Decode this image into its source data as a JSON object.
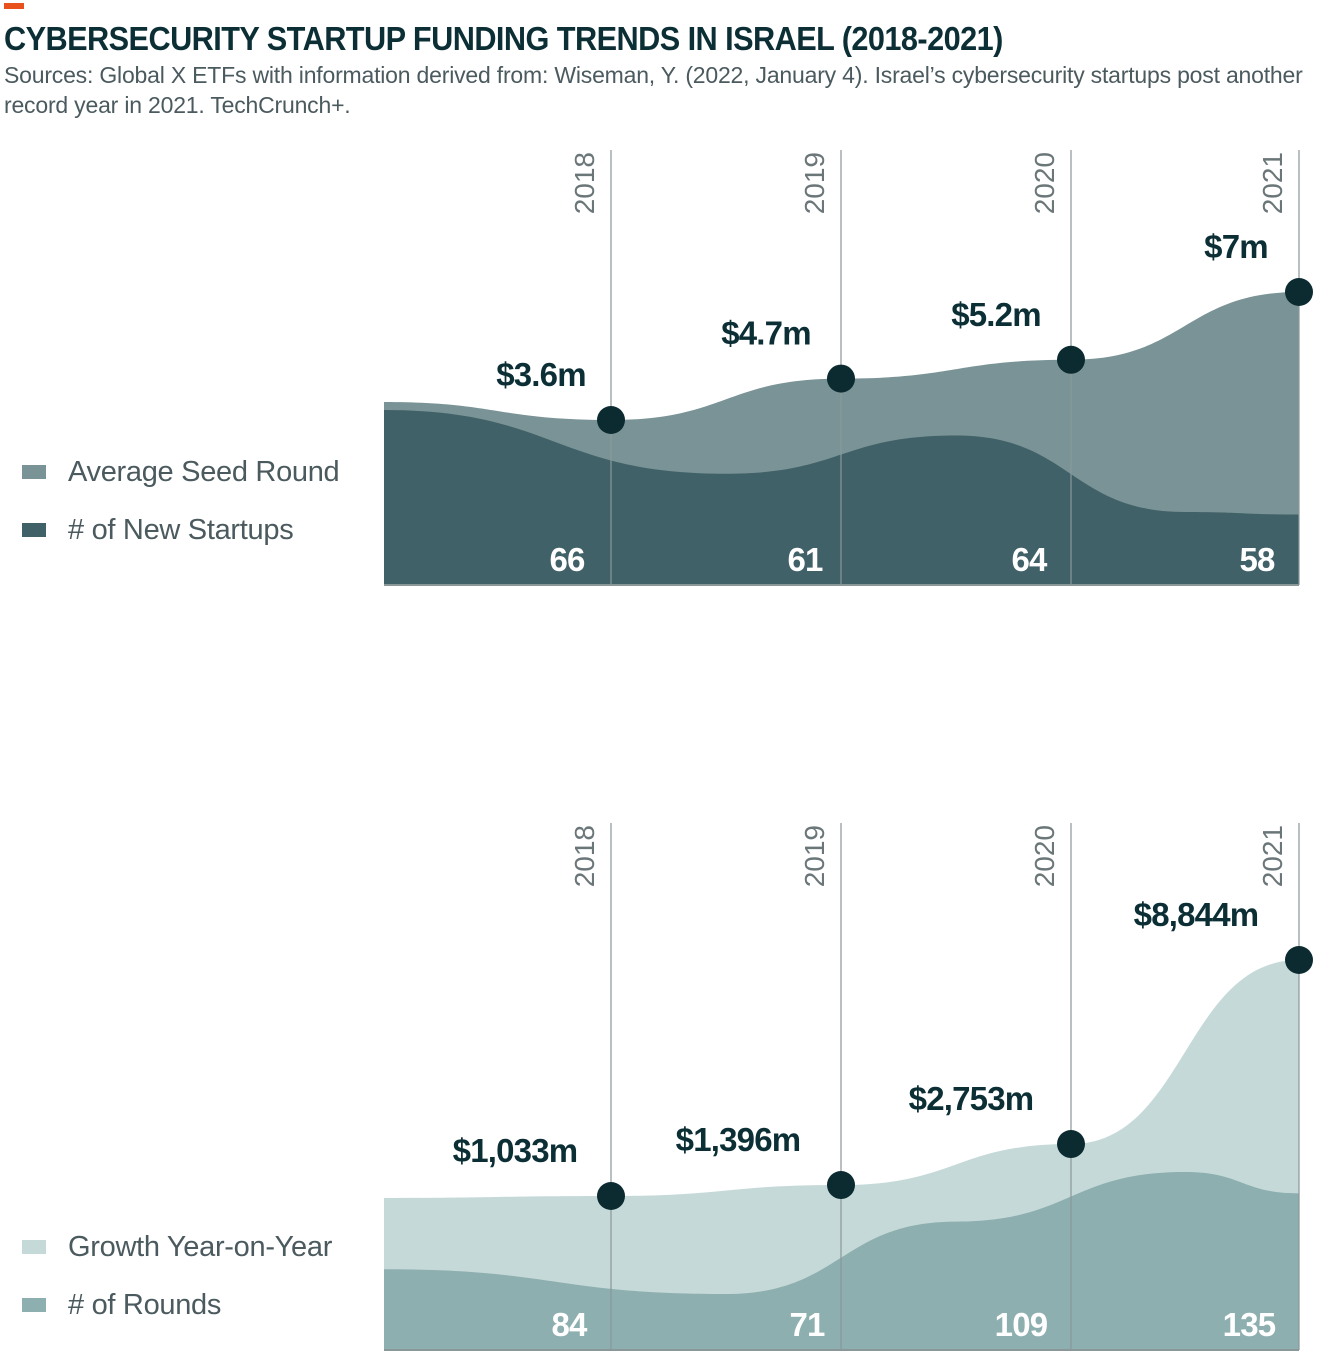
{
  "header": {
    "title": "CYBERSECURITY STARTUP FUNDING TRENDS IN ISRAEL (2018-2021)",
    "source": "Sources: Global X ETFs with information derived from: Wiseman, Y. (2022, January 4). Israel’s cybersecurity startups post another record year in 2021. TechCrunch+.",
    "accent_color": "#e8501c"
  },
  "chart_data": [
    {
      "type": "area",
      "categories": [
        "2018",
        "2019",
        "2020",
        "2021"
      ],
      "series": [
        {
          "name": "Average Seed Round",
          "values": [
            3.6,
            4.7,
            5.2,
            7
          ],
          "labels": [
            "$3.6m",
            "$4.7m",
            "$5.2m",
            "$7m"
          ],
          "color": "#7a9396"
        },
        {
          "name": "# of New Startups",
          "values": [
            66,
            61,
            64,
            58
          ],
          "labels": [
            "66",
            "61",
            "64",
            "58"
          ],
          "color": "#416168"
        }
      ],
      "legend": "left"
    },
    {
      "type": "area",
      "categories": [
        "2018",
        "2019",
        "2020",
        "2021"
      ],
      "series": [
        {
          "name": "Growth Year-on-Year",
          "values": [
            1033,
            1396,
            2753,
            8844
          ],
          "labels": [
            "$1,033m",
            "$1,396m",
            "$2,753m",
            "$8,844m"
          ],
          "color": "#c6d9d9"
        },
        {
          "name": "# of Rounds",
          "values": [
            84,
            71,
            109,
            135
          ],
          "labels": [
            "84",
            "71",
            "109",
            "135"
          ],
          "color": "#8eafaf"
        }
      ],
      "legend": "left"
    }
  ],
  "colors": {
    "marker": "#0b2b30",
    "gridline": "#8a9799",
    "year_label": "#6b7679",
    "value_label": "#0c2f36",
    "count_label": "#ffffff"
  }
}
